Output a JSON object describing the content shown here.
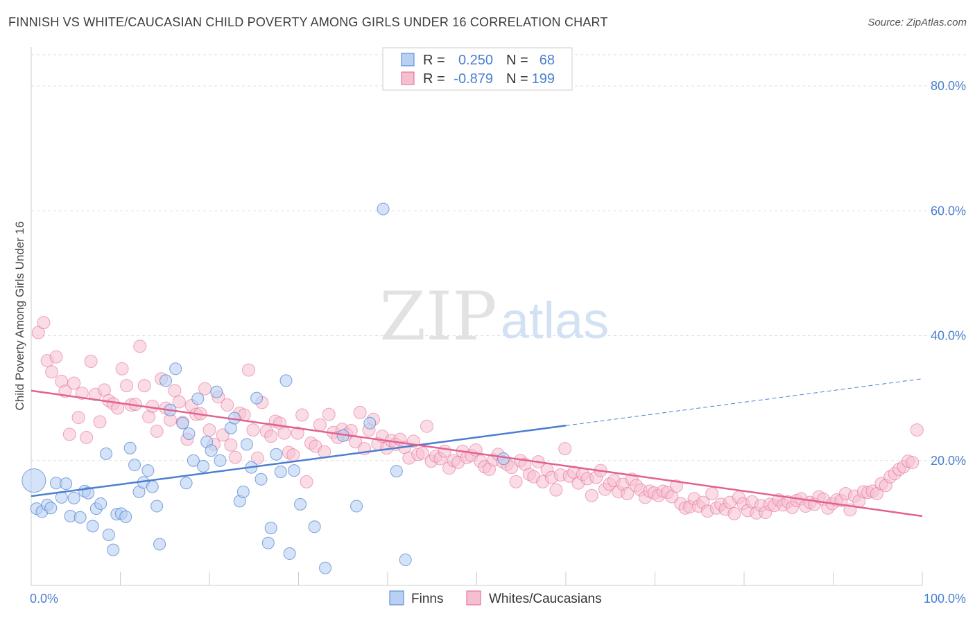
{
  "title": "FINNISH VS WHITE/CAUCASIAN CHILD POVERTY AMONG GIRLS UNDER 16 CORRELATION CHART",
  "source": "Source: ZipAtlas.com",
  "watermark": {
    "zip": "ZIP",
    "atlas": "atlas"
  },
  "colors": {
    "finns": "#4a7fd0",
    "finns_fill": "#b8d1f3",
    "whites": "#e2628f",
    "whites_fill": "#f6bfd0",
    "axis_text": "#4a7fd0"
  },
  "legend": {
    "finns": {
      "r_label": "R =",
      "r_value": "0.250",
      "n_label": "N =",
      "n_value": "68"
    },
    "whites": {
      "r_label": "R =",
      "r_value": "-0.879",
      "n_label": "N =",
      "n_value": "199"
    }
  },
  "bottom_legend": {
    "finns": "Finns",
    "whites": "Whites/Caucasians"
  },
  "chart_data": {
    "type": "scatter",
    "title": "FINNISH VS WHITE/CAUCASIAN CHILD POVERTY AMONG GIRLS UNDER 16 CORRELATION CHART",
    "xlabel": "",
    "ylabel": "Child Poverty Among Girls Under 16",
    "xlim": [
      0,
      100
    ],
    "ylim": [
      0,
      80
    ],
    "x_tick_labels": [
      "0.0%",
      "100.0%"
    ],
    "y_ticks": [
      20,
      40,
      60,
      80
    ],
    "y_tick_labels": [
      "20.0%",
      "40.0%",
      "60.0%",
      "80.0%"
    ],
    "grid": true,
    "legend_placement": "top-center",
    "series": [
      {
        "name": "Finns",
        "r": 0.25,
        "n": 68,
        "trend": {
          "x": [
            0,
            60
          ],
          "y": [
            14.3,
            25.6
          ],
          "dashed_to": [
            100,
            33.1
          ]
        },
        "points": [
          [
            0.3,
            16.8
          ],
          [
            0.6,
            12.3
          ],
          [
            1.2,
            11.8
          ],
          [
            1.8,
            12.9
          ],
          [
            2.2,
            12.4
          ],
          [
            2.8,
            16.4
          ],
          [
            3.4,
            14.1
          ],
          [
            3.9,
            16.3
          ],
          [
            4.4,
            11.1
          ],
          [
            4.8,
            14.0
          ],
          [
            5.5,
            10.9
          ],
          [
            6.0,
            15.1
          ],
          [
            6.4,
            14.8
          ],
          [
            6.9,
            9.5
          ],
          [
            7.3,
            12.3
          ],
          [
            7.8,
            13.1
          ],
          [
            8.4,
            21.1
          ],
          [
            8.7,
            8.1
          ],
          [
            9.2,
            5.7
          ],
          [
            9.6,
            11.4
          ],
          [
            10.1,
            11.5
          ],
          [
            10.6,
            11.0
          ],
          [
            11.1,
            22.0
          ],
          [
            11.6,
            19.3
          ],
          [
            12.1,
            15.0
          ],
          [
            12.6,
            16.5
          ],
          [
            13.1,
            18.4
          ],
          [
            13.6,
            15.8
          ],
          [
            14.1,
            12.7
          ],
          [
            14.4,
            6.6
          ],
          [
            15.1,
            32.8
          ],
          [
            15.6,
            28.1
          ],
          [
            16.2,
            34.7
          ],
          [
            17.0,
            26.0
          ],
          [
            17.4,
            16.4
          ],
          [
            17.7,
            24.3
          ],
          [
            18.2,
            20.0
          ],
          [
            18.7,
            29.9
          ],
          [
            19.3,
            19.1
          ],
          [
            19.7,
            23.0
          ],
          [
            20.2,
            21.6
          ],
          [
            20.8,
            31.0
          ],
          [
            21.2,
            20.0
          ],
          [
            22.4,
            25.2
          ],
          [
            22.8,
            26.8
          ],
          [
            23.4,
            13.5
          ],
          [
            23.8,
            15.0
          ],
          [
            24.2,
            22.6
          ],
          [
            24.7,
            18.9
          ],
          [
            25.3,
            30.0
          ],
          [
            25.8,
            17.0
          ],
          [
            26.6,
            6.8
          ],
          [
            26.9,
            9.2
          ],
          [
            27.5,
            21.0
          ],
          [
            28.0,
            18.2
          ],
          [
            28.6,
            32.8
          ],
          [
            29.0,
            5.1
          ],
          [
            29.5,
            18.4
          ],
          [
            30.2,
            13.0
          ],
          [
            31.8,
            9.4
          ],
          [
            33.0,
            2.8
          ],
          [
            35.0,
            24.0
          ],
          [
            36.5,
            12.7
          ],
          [
            38.0,
            26.0
          ],
          [
            39.5,
            60.3
          ],
          [
            41.0,
            18.3
          ],
          [
            42.0,
            4.1
          ],
          [
            53.0,
            20.3
          ]
        ]
      },
      {
        "name": "Whites/Caucasians",
        "r": -0.879,
        "n": 199,
        "trend": {
          "x": [
            0,
            100
          ],
          "y": [
            31.2,
            11.1
          ]
        },
        "points": [
          [
            0.8,
            40.5
          ],
          [
            1.4,
            42.1
          ],
          [
            1.8,
            36.0
          ],
          [
            2.3,
            34.2
          ],
          [
            2.8,
            36.6
          ],
          [
            3.4,
            32.7
          ],
          [
            3.8,
            31.1
          ],
          [
            4.3,
            24.2
          ],
          [
            4.8,
            32.4
          ],
          [
            5.3,
            26.9
          ],
          [
            5.7,
            30.8
          ],
          [
            6.2,
            23.7
          ],
          [
            6.7,
            35.9
          ],
          [
            7.2,
            30.6
          ],
          [
            7.7,
            26.2
          ],
          [
            8.2,
            31.3
          ],
          [
            8.7,
            29.6
          ],
          [
            9.2,
            29.1
          ],
          [
            9.7,
            28.4
          ],
          [
            10.2,
            34.7
          ],
          [
            10.7,
            32.0
          ],
          [
            11.2,
            28.9
          ],
          [
            11.7,
            29.0
          ],
          [
            12.2,
            38.3
          ],
          [
            12.7,
            32.0
          ],
          [
            13.2,
            27.0
          ],
          [
            13.6,
            28.7
          ],
          [
            14.1,
            24.7
          ],
          [
            14.6,
            33.1
          ],
          [
            15.1,
            28.4
          ],
          [
            15.6,
            26.5
          ],
          [
            16.1,
            31.2
          ],
          [
            16.6,
            29.4
          ],
          [
            17.0,
            26.1
          ],
          [
            17.5,
            23.4
          ],
          [
            18.0,
            28.8
          ],
          [
            18.5,
            27.4
          ],
          [
            19.0,
            27.5
          ],
          [
            19.5,
            31.5
          ],
          [
            20.0,
            24.9
          ],
          [
            20.5,
            22.6
          ],
          [
            21.0,
            30.2
          ],
          [
            21.5,
            24.1
          ],
          [
            22.0,
            28.9
          ],
          [
            22.4,
            22.5
          ],
          [
            22.9,
            20.5
          ],
          [
            23.4,
            27.6
          ],
          [
            23.9,
            27.3
          ],
          [
            24.4,
            34.5
          ],
          [
            24.9,
            24.9
          ],
          [
            25.4,
            20.4
          ],
          [
            25.9,
            29.3
          ],
          [
            26.4,
            24.7
          ],
          [
            26.9,
            23.9
          ],
          [
            27.4,
            26.3
          ],
          [
            27.9,
            26.0
          ],
          [
            28.4,
            24.4
          ],
          [
            28.9,
            21.3
          ],
          [
            29.4,
            20.9
          ],
          [
            29.9,
            24.4
          ],
          [
            30.4,
            27.3
          ],
          [
            30.9,
            16.6
          ],
          [
            31.4,
            22.8
          ],
          [
            31.9,
            22.3
          ],
          [
            32.4,
            25.7
          ],
          [
            32.9,
            21.4
          ],
          [
            33.4,
            27.4
          ],
          [
            33.9,
            24.5
          ],
          [
            34.4,
            23.7
          ],
          [
            34.9,
            25.0
          ],
          [
            35.4,
            24.2
          ],
          [
            35.9,
            24.8
          ],
          [
            36.4,
            23.0
          ],
          [
            36.9,
            27.7
          ],
          [
            37.4,
            21.9
          ],
          [
            37.9,
            24.9
          ],
          [
            38.4,
            26.6
          ],
          [
            38.9,
            22.7
          ],
          [
            39.4,
            23.9
          ],
          [
            39.9,
            22.0
          ],
          [
            40.4,
            23.2
          ],
          [
            40.9,
            22.6
          ],
          [
            41.4,
            23.4
          ],
          [
            41.9,
            22.1
          ],
          [
            42.4,
            20.4
          ],
          [
            42.9,
            23.1
          ],
          [
            43.4,
            21.0
          ],
          [
            43.9,
            21.2
          ],
          [
            44.4,
            25.5
          ],
          [
            44.9,
            19.9
          ],
          [
            45.4,
            20.7
          ],
          [
            45.9,
            20.3
          ],
          [
            46.4,
            21.5
          ],
          [
            46.9,
            18.8
          ],
          [
            47.4,
            20.0
          ],
          [
            47.9,
            19.7
          ],
          [
            48.4,
            21.5
          ],
          [
            48.9,
            20.5
          ],
          [
            49.4,
            20.8
          ],
          [
            49.9,
            21.7
          ],
          [
            50.4,
            19.9
          ],
          [
            50.9,
            19.0
          ],
          [
            51.4,
            18.6
          ],
          [
            51.9,
            20.1
          ],
          [
            52.4,
            21.0
          ],
          [
            52.9,
            19.8
          ],
          [
            53.4,
            19.4
          ],
          [
            53.9,
            18.9
          ],
          [
            54.4,
            16.6
          ],
          [
            54.9,
            20.0
          ],
          [
            55.4,
            19.4
          ],
          [
            55.9,
            17.8
          ],
          [
            56.4,
            17.4
          ],
          [
            56.9,
            19.8
          ],
          [
            57.4,
            16.6
          ],
          [
            57.9,
            18.5
          ],
          [
            58.4,
            17.3
          ],
          [
            58.9,
            15.3
          ],
          [
            59.4,
            17.7
          ],
          [
            59.9,
            21.9
          ],
          [
            60.4,
            17.5
          ],
          [
            60.9,
            18.1
          ],
          [
            61.4,
            16.4
          ],
          [
            61.9,
            17.8
          ],
          [
            62.4,
            17.1
          ],
          [
            62.9,
            14.4
          ],
          [
            63.4,
            17.3
          ],
          [
            63.9,
            18.4
          ],
          [
            64.4,
            15.4
          ],
          [
            64.9,
            16.2
          ],
          [
            65.4,
            16.8
          ],
          [
            65.9,
            15.0
          ],
          [
            66.4,
            16.2
          ],
          [
            66.9,
            14.7
          ],
          [
            67.4,
            17.0
          ],
          [
            67.9,
            16.0
          ],
          [
            68.4,
            15.3
          ],
          [
            68.9,
            14.1
          ],
          [
            69.4,
            15.1
          ],
          [
            69.9,
            14.8
          ],
          [
            70.4,
            14.4
          ],
          [
            70.9,
            15.1
          ],
          [
            71.4,
            14.9
          ],
          [
            71.9,
            14.2
          ],
          [
            72.4,
            15.9
          ],
          [
            72.9,
            13.1
          ],
          [
            73.4,
            12.4
          ],
          [
            73.9,
            12.6
          ],
          [
            74.4,
            13.9
          ],
          [
            74.9,
            12.7
          ],
          [
            75.4,
            13.3
          ],
          [
            75.9,
            11.9
          ],
          [
            76.4,
            14.7
          ],
          [
            76.9,
            12.4
          ],
          [
            77.4,
            13.0
          ],
          [
            77.9,
            12.2
          ],
          [
            78.4,
            13.3
          ],
          [
            78.9,
            11.5
          ],
          [
            79.4,
            14.1
          ],
          [
            79.9,
            13.1
          ],
          [
            80.4,
            12.0
          ],
          [
            80.9,
            13.4
          ],
          [
            81.4,
            11.6
          ],
          [
            81.9,
            12.8
          ],
          [
            82.4,
            11.7
          ],
          [
            82.9,
            13.0
          ],
          [
            83.4,
            12.8
          ],
          [
            83.9,
            13.7
          ],
          [
            84.4,
            12.9
          ],
          [
            84.9,
            13.4
          ],
          [
            85.4,
            12.5
          ],
          [
            85.9,
            13.6
          ],
          [
            86.4,
            13.9
          ],
          [
            86.9,
            12.7
          ],
          [
            87.4,
            13.3
          ],
          [
            87.9,
            13.0
          ],
          [
            88.4,
            14.2
          ],
          [
            88.9,
            13.8
          ],
          [
            89.4,
            12.4
          ],
          [
            89.9,
            13.1
          ],
          [
            90.4,
            13.7
          ],
          [
            90.9,
            13.6
          ],
          [
            91.4,
            14.7
          ],
          [
            91.9,
            12.1
          ],
          [
            92.4,
            14.3
          ],
          [
            92.9,
            13.5
          ],
          [
            93.4,
            15.0
          ],
          [
            93.9,
            14.9
          ],
          [
            94.4,
            15.1
          ],
          [
            94.9,
            14.7
          ],
          [
            95.4,
            16.3
          ],
          [
            95.9,
            16.0
          ],
          [
            96.4,
            17.4
          ],
          [
            96.9,
            17.9
          ],
          [
            97.4,
            18.6
          ],
          [
            97.9,
            19.0
          ],
          [
            98.4,
            19.9
          ],
          [
            98.9,
            19.7
          ],
          [
            99.4,
            24.9
          ]
        ]
      }
    ]
  }
}
